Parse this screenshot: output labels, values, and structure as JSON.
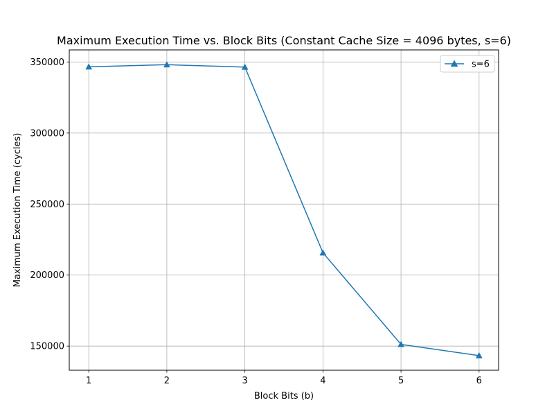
{
  "chart_data": {
    "type": "line",
    "title": "Maximum Execution Time vs. Block Bits (Constant Cache Size = 4096 bytes, s=6)",
    "xlabel": "Block Bits (b)",
    "ylabel": "Maximum Execution Time (cycles)",
    "x": [
      1,
      2,
      3,
      4,
      5,
      6
    ],
    "series": [
      {
        "name": "s=6",
        "color": "#1f77b4",
        "marker": "triangle-up",
        "values": [
          346600,
          348100,
          346400,
          215700,
          151200,
          143300
        ]
      }
    ],
    "xticks": [
      1,
      2,
      3,
      4,
      5,
      6
    ],
    "yticks": [
      150000,
      200000,
      250000,
      300000,
      350000
    ],
    "xlim": [
      0.75,
      6.25
    ],
    "ylim": [
      133000,
      358500
    ],
    "grid": true,
    "legend_position": "top-right"
  }
}
